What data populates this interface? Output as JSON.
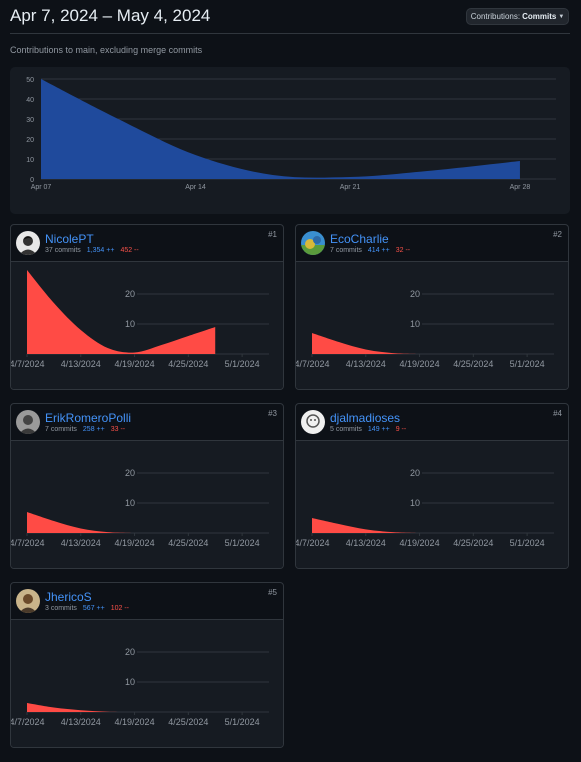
{
  "header": {
    "date_range": "Apr 7, 2024 – May 4, 2024",
    "contributions_label": "Contributions:",
    "contributions_value": "Commits",
    "subtitle": "Contributions to main, excluding merge commits"
  },
  "colors": {
    "main_area": "#1f4a9c",
    "user_area": "#ff4b45",
    "link": "#4493f8",
    "deletions": "#f85149"
  },
  "chart_data": [
    {
      "type": "area",
      "title": "",
      "x": [
        "Apr 07",
        "Apr 10",
        "Apr 14",
        "Apr 17",
        "Apr 21",
        "Apr 24",
        "Apr 28"
      ],
      "x_ticks": [
        "Apr 07",
        "Apr 14",
        "Apr 21",
        "Apr 28"
      ],
      "values": [
        50,
        30,
        12,
        2,
        1,
        4,
        9
      ],
      "ylim": [
        0,
        50
      ],
      "y_ticks": [
        "50",
        "40",
        "30",
        "20",
        "10",
        "0"
      ],
      "grid": true
    },
    {
      "type": "area",
      "series_owner": "NicolePT",
      "x": [
        "4/7/2024",
        "4/10/2024",
        "4/13/2024",
        "4/16/2024",
        "4/19/2024",
        "4/22/2024",
        "4/25/2024",
        "4/28/2024"
      ],
      "x_ticks": [
        "4/7/2024",
        "4/13/2024",
        "4/19/2024",
        "4/25/2024",
        "5/1/2024"
      ],
      "values": [
        28,
        17,
        8,
        2,
        0.5,
        3,
        6,
        9
      ],
      "ylim": [
        0,
        30
      ],
      "y_ticks": [
        "20",
        "10"
      ]
    },
    {
      "type": "area",
      "series_owner": "EcoCharlie",
      "x": [
        "4/7/2024",
        "4/10/2024",
        "4/13/2024",
        "4/16/2024",
        "4/19/2024"
      ],
      "x_ticks": [
        "4/7/2024",
        "4/13/2024",
        "4/19/2024",
        "4/25/2024",
        "5/1/2024"
      ],
      "values": [
        7,
        4,
        1.5,
        0.3,
        0
      ],
      "ylim": [
        0,
        30
      ],
      "y_ticks": [
        "20",
        "10"
      ]
    },
    {
      "type": "area",
      "series_owner": "ErikRomeroPolli",
      "x": [
        "4/7/2024",
        "4/10/2024",
        "4/13/2024",
        "4/16/2024",
        "4/19/2024"
      ],
      "x_ticks": [
        "4/7/2024",
        "4/13/2024",
        "4/19/2024",
        "4/25/2024",
        "5/1/2024"
      ],
      "values": [
        7,
        4,
        1.5,
        0.3,
        0
      ],
      "ylim": [
        0,
        30
      ],
      "y_ticks": [
        "20",
        "10"
      ]
    },
    {
      "type": "area",
      "series_owner": "djalmadioses",
      "x": [
        "4/7/2024",
        "4/10/2024",
        "4/13/2024",
        "4/16/2024",
        "4/19/2024"
      ],
      "x_ticks": [
        "4/7/2024",
        "4/13/2024",
        "4/19/2024",
        "4/25/2024",
        "5/1/2024"
      ],
      "values": [
        5,
        3,
        1.2,
        0.3,
        0
      ],
      "ylim": [
        0,
        30
      ],
      "y_ticks": [
        "20",
        "10"
      ]
    },
    {
      "type": "area",
      "series_owner": "JhericoS",
      "x": [
        "4/7/2024",
        "4/10/2024",
        "4/13/2024",
        "4/16/2024",
        "4/19/2024"
      ],
      "x_ticks": [
        "4/7/2024",
        "4/13/2024",
        "4/19/2024",
        "4/25/2024",
        "5/1/2024"
      ],
      "values": [
        3,
        1.5,
        0.6,
        0.1,
        0
      ],
      "ylim": [
        0,
        30
      ],
      "y_ticks": [
        "20",
        "10"
      ]
    }
  ],
  "contributors": [
    {
      "name": "NicolePT",
      "rank": "#1",
      "commits": "37 commits",
      "additions": "1,354 ++",
      "deletions": "452 --",
      "avatar": "avatar-person-icon"
    },
    {
      "name": "EcoCharlie",
      "rank": "#2",
      "commits": "7 commits",
      "additions": "414 ++",
      "deletions": "32 --",
      "avatar": "avatar-landscape-icon"
    },
    {
      "name": "ErikRomeroPolli",
      "rank": "#3",
      "commits": "7 commits",
      "additions": "258 ++",
      "deletions": "33 --",
      "avatar": "avatar-person-icon"
    },
    {
      "name": "djalmadioses",
      "rank": "#4",
      "commits": "5 commits",
      "additions": "149 ++",
      "deletions": "9 --",
      "avatar": "avatar-person-icon"
    },
    {
      "name": "JhericoS",
      "rank": "#5",
      "commits": "3 commits",
      "additions": "567 ++",
      "deletions": "102 --",
      "avatar": "avatar-person-icon"
    }
  ]
}
